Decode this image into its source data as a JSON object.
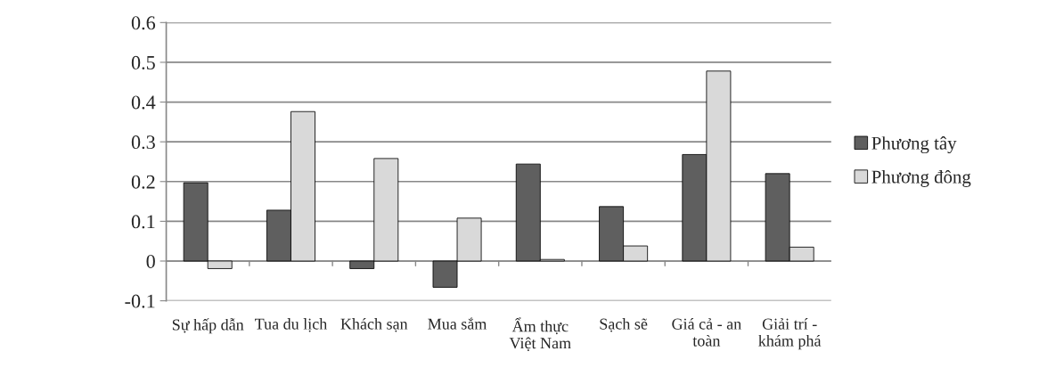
{
  "chart_data": {
    "type": "bar",
    "categories": [
      "Sự hấp dẫn",
      "Tua du lịch",
      "Khách sạn",
      "Mua sắm",
      "Ẩm thực\nViệt Nam",
      "Sạch sẽ",
      "Giá cả - an\ntoàn",
      "Giải trí -\nkhám phá"
    ],
    "series": [
      {
        "name": "Phương tây",
        "color": "#5f5f5f",
        "values": [
          0.197,
          0.128,
          -0.019,
          -0.066,
          0.244,
          0.137,
          0.268,
          0.22
        ]
      },
      {
        "name": "Phương đông",
        "color": "#d9d9d9",
        "values": [
          -0.019,
          0.376,
          0.258,
          0.108,
          0.004,
          0.038,
          0.478,
          0.035
        ]
      }
    ],
    "ylim": [
      -0.1,
      0.6
    ],
    "yticks": [
      -0.1,
      0,
      0.1,
      0.2,
      0.3,
      0.4,
      0.5,
      0.6
    ],
    "grid": "y",
    "legend": "right"
  }
}
